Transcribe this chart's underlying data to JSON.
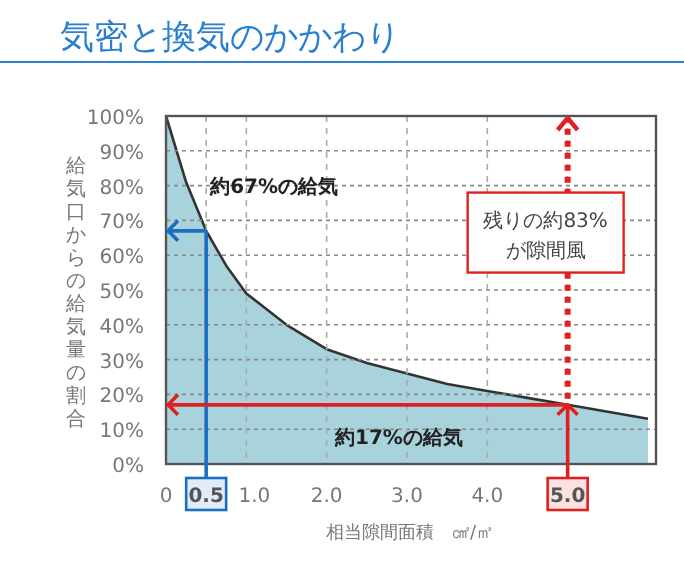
{
  "chart_data": {
    "type": "area",
    "title": "気密と換気のかかわり",
    "xlabel": "相当隙間面積　㎠/㎡",
    "ylabel": "給気口からの給気量の割合",
    "x": [
      0,
      0.25,
      0.5,
      0.75,
      1.0,
      1.5,
      2.0,
      2.5,
      3.0,
      3.5,
      4.0,
      4.5,
      5.0,
      5.5,
      6.0
    ],
    "series": [
      {
        "color": "#a8d3dc",
        "values": [
          100,
          81,
          67,
          57,
          49,
          40,
          33,
          29,
          26,
          23,
          21,
          19,
          17,
          15,
          13
        ]
      }
    ],
    "xlim": [
      0,
      6.1
    ],
    "ylim": [
      0,
      100
    ],
    "xticks": [
      0,
      0.5,
      {
        "value": 1,
        "label": "1.0"
      },
      {
        "value": 2,
        "label": "2.0"
      },
      {
        "value": 3,
        "label": "3.0"
      },
      {
        "value": 4,
        "label": "4.0"
      },
      {
        "value": 5,
        "label": "5.0"
      }
    ],
    "yticks": [
      {
        "value": 0,
        "label": "0%"
      },
      {
        "value": 10,
        "label": "10%"
      },
      {
        "value": 20,
        "label": "20%"
      },
      {
        "value": 30,
        "label": "30%"
      },
      {
        "value": 40,
        "label": "40%"
      },
      {
        "value": 50,
        "label": "50%"
      },
      {
        "value": 60,
        "label": "60%"
      },
      {
        "value": 70,
        "label": "70%"
      },
      {
        "value": 80,
        "label": "80%"
      },
      {
        "value": 90,
        "label": "90%"
      },
      {
        "value": 100,
        "label": "100%"
      }
    ],
    "grid": true,
    "ref_lines": [
      {
        "axis": "x",
        "value": 0.5,
        "color": "#1a6fc0"
      },
      {
        "axis": "y",
        "value": 67,
        "color": "#1a6fc0"
      },
      {
        "axis": "y",
        "value": 17,
        "color": "#e02020"
      },
      {
        "axis": "x",
        "value": 5,
        "color": "#e02020"
      },
      {
        "axis": "x",
        "value": 5,
        "color": "#e02020",
        "line_style": "dotted"
      }
    ],
    "annotations": [
      "約67%の給気",
      "約17%の給気",
      "残りの約83%が隙間風"
    ]
  }
}
